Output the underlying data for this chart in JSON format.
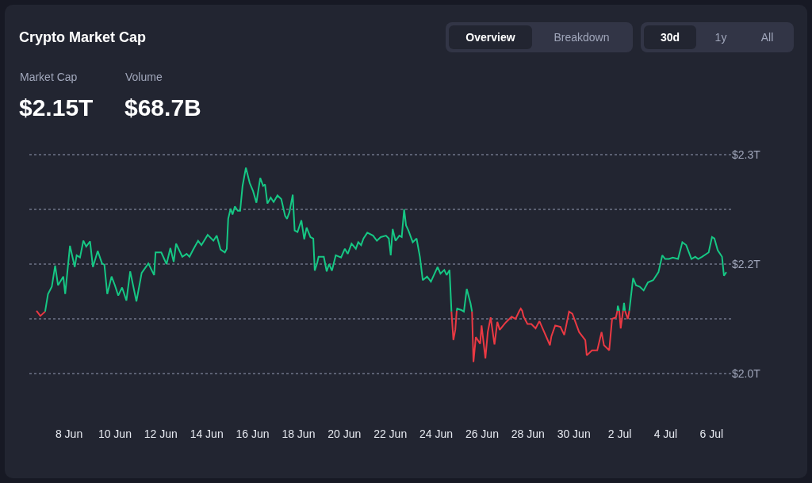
{
  "chart_data": {
    "type": "line",
    "title": "Crypto Market Cap",
    "annotations": [
      "Market Cap",
      "$2.15T",
      "Volume",
      "$68.7B",
      "Overview",
      "Breakdown",
      "30d",
      "1y",
      "All"
    ],
    "xlim": [
      "--06-06T06:30",
      "--07-06T20:30"
    ],
    "xticks": [
      {
        "value": "--06-08",
        "label": "8 Jun"
      },
      {
        "value": "--06-10",
        "label": "10 Jun"
      },
      {
        "value": "--06-12",
        "label": "12 Jun"
      },
      {
        "value": "--06-14",
        "label": "14 Jun"
      },
      {
        "value": "--06-16",
        "label": "16 Jun"
      },
      {
        "value": "--06-18",
        "label": "18 Jun"
      },
      {
        "value": "--06-20",
        "label": "20 Jun"
      },
      {
        "value": "--06-22",
        "label": "22 Jun"
      },
      {
        "value": "--06-24",
        "label": "24 Jun"
      },
      {
        "value": "--06-26",
        "label": "26 Jun"
      },
      {
        "value": "--06-28",
        "label": "28 Jun"
      },
      {
        "value": "--06-30",
        "label": "30 Jun"
      },
      {
        "value": "--07-02",
        "label": "2 Jul"
      },
      {
        "value": "--07-04",
        "label": "4 Jul"
      },
      {
        "value": "--07-06",
        "label": "6 Jul"
      }
    ],
    "ylim": [
      1.998,
      2.302
    ],
    "yticks": [
      {
        "value": 2.0,
        "label": "$2.0T"
      },
      {
        "value": 2.075,
        "label": null
      },
      {
        "value": 2.15,
        "label": "$2.2T"
      },
      {
        "value": 2.225,
        "label": null
      },
      {
        "value": 2.3,
        "label": "$2.3T"
      }
    ],
    "grid": "y",
    "series": [
      {
        "color": "#16c784",
        "x": [
          "--06-06T23:00",
          "--06-07T02:00",
          "--06-07T06:00",
          "--06-07T09:30",
          "--06-07T12:30",
          "--06-07T18:00",
          "--06-07T20:00",
          "--06-08T01:00",
          "--06-08T06:00",
          "--06-08T08:00",
          "--06-08T11:30",
          "--06-08T15:00",
          "--06-08T18:00",
          "--06-08T22:00",
          "--06-09T01:00",
          "--06-09T06:00",
          "--06-09T10:30",
          "--06-09T13:00",
          "--06-09T16:00",
          "--06-09T20:30",
          "--06-10T00:00",
          "--06-10T03:30",
          "--06-10T07:30",
          "--06-10T12:00",
          "--06-10T16:00",
          "--06-10T22:30",
          "--06-11T04:00",
          "--06-11T11:00",
          "--06-11T17:00",
          "--06-11T18:30",
          "--06-12T00:30",
          "--06-12T06:00",
          "--06-12T10:00",
          "--06-12T13:30",
          "--06-12T16:00",
          "--06-12T22:30",
          "--06-13T03:00",
          "--06-13T06:00",
          "--06-13T09:30",
          "--06-13T15:00",
          "--06-13T18:30",
          "--06-14T01:00",
          "--06-14T07:00",
          "--06-14T10:30",
          "--06-14T14:30",
          "--06-14T19:00",
          "--06-14T21:00",
          "--06-14T22:30",
          "--06-15T01:00",
          "--06-15T03:00",
          "--06-15T05:30",
          "--06-15T08:30",
          "--06-15T11:00",
          "--06-15T13:30",
          "--06-15T17:00",
          "--06-15T21:00",
          "--06-16T00:30",
          "--06-16T04:00",
          "--06-16T08:00",
          "--06-16T11:00",
          "--06-16T13:00",
          "--06-16T15:30",
          "--06-16T19:00",
          "--06-16T22:00",
          "--06-17T02:00",
          "--06-17T06:00",
          "--06-17T10:00",
          "--06-17T12:00",
          "--06-17T14:30",
          "--06-17T18:00",
          "--06-17T20:00",
          "--06-17T23:00",
          "--06-18T03:00",
          "--06-18T06:00",
          "--06-18T08:30",
          "--06-18T12:30",
          "--06-18T15:30",
          "--06-18T17:00",
          "--06-18T19:30",
          "--06-18T21:00",
          "--06-19T02:30",
          "--06-19T05:30",
          "--06-19T08:00",
          "--06-19T11:00",
          "--06-19T15:00",
          "--06-19T20:30",
          "--06-20T00:30",
          "--06-20T03:30",
          "--06-20T07:30",
          "--06-20T12:00",
          "--06-20T14:30",
          "--06-20T17:30",
          "--06-20T20:00",
          "--06-21T00:00",
          "--06-21T06:00",
          "--06-21T10:00",
          "--06-21T14:00",
          "--06-21T19:30",
          "--06-21T22:30",
          "--06-22T00:30",
          "--06-22T02:30",
          "--06-22T05:30",
          "--06-22T09:30",
          "--06-22T12:00",
          "--06-22T14:30",
          "--06-22T16:30",
          "--06-22T19:00",
          "--06-22T23:30",
          "--06-23T03:30",
          "--06-23T07:00",
          "--06-23T10:00",
          "--06-23T14:30",
          "--06-23T18:30",
          "--06-24T01:30",
          "--06-24T04:30",
          "--06-24T08:30",
          "--06-24T11:00",
          "--06-24T14:00",
          "--06-24T15:30",
          "--06-24T16:00",
          "--06-24T18:00",
          "--06-24T21:30",
          "--06-24T22:00",
          "--06-25T02:30",
          "--06-25T05:00",
          "--06-25T08:00",
          "--06-25T12:00",
          "--06-25T13:30",
          "--06-29T10:00",
          "--07-01T21:30",
          "--07-01T22:00",
          "--07-01T23:30",
          "--07-02T01:00",
          "--07-02T03:30",
          "--07-02T04:30",
          "--07-02T05:30",
          "--07-02T08:30",
          "--07-02T10:00",
          "--07-02T11:30",
          "--07-02T14:00",
          "--07-02T17:00",
          "--07-02T21:00",
          "--07-03T01:00",
          "--07-03T05:30",
          "--07-03T11:00",
          "--07-03T16:30",
          "--07-03T20:30",
          "--07-03T23:30",
          "--07-04T03:30",
          "--07-04T07:30",
          "--07-04T13:00",
          "--07-04T17:30",
          "--07-04T21:30",
          "--07-05T03:00",
          "--07-05T07:00",
          "--07-05T10:00",
          "--07-05T14:00",
          "--07-05T21:00",
          "--07-06T00:30",
          "--07-06T03:00",
          "--07-06T06:30",
          "--07-06T11:00",
          "--07-06T13:00",
          "--07-06T15:30"
        ],
        "values": [
          2.085,
          2.109,
          2.119,
          2.148,
          2.121,
          2.133,
          2.109,
          2.175,
          2.146,
          2.162,
          2.159,
          2.182,
          2.174,
          2.181,
          2.146,
          2.168,
          2.151,
          2.149,
          2.109,
          2.133,
          2.121,
          2.107,
          2.118,
          2.1,
          2.14,
          2.099,
          2.138,
          2.151,
          2.135,
          2.166,
          2.166,
          2.15,
          2.172,
          2.153,
          2.178,
          2.16,
          2.164,
          2.16,
          2.169,
          2.182,
          2.176,
          2.19,
          2.182,
          2.189,
          2.17,
          2.166,
          2.171,
          2.212,
          2.226,
          2.218,
          2.229,
          2.223,
          2.223,
          2.257,
          2.282,
          2.261,
          2.25,
          2.234,
          2.268,
          2.257,
          2.259,
          2.233,
          2.241,
          2.235,
          2.244,
          2.239,
          2.216,
          2.212,
          2.221,
          2.245,
          2.196,
          2.194,
          2.21,
          2.184,
          2.2,
          2.187,
          2.185,
          2.141,
          2.151,
          2.16,
          2.16,
          2.14,
          2.15,
          2.141,
          2.162,
          2.159,
          2.171,
          2.164,
          2.178,
          2.171,
          2.18,
          2.176,
          2.185,
          2.193,
          2.189,
          2.182,
          2.187,
          2.189,
          2.185,
          2.162,
          2.198,
          2.182,
          2.189,
          2.187,
          2.225,
          2.203,
          2.196,
          2.18,
          2.185,
          2.16,
          2.128,
          2.133,
          2.126,
          2.146,
          2.137,
          2.142,
          2.135,
          2.142,
          2.1,
          2.085,
          null,
          2.086,
          2.089,
          2.087,
          2.085,
          2.116,
          2.096,
          2.085,
          null,
          2.086,
          2.093,
          2.086,
          null,
          2.086,
          2.097,
          2.086,
          null,
          2.086,
          2.103,
          2.131,
          2.121,
          2.119,
          2.114,
          2.125,
          2.128,
          2.139,
          2.162,
          2.157,
          2.157,
          2.159,
          2.157,
          2.18,
          2.176,
          2.157,
          2.16,
          2.157,
          2.16,
          2.166,
          2.187,
          2.185,
          2.169,
          2.16,
          2.134,
          2.139
        ]
      },
      {
        "color": "#ea3943",
        "x": [
          "--06-06T14:00",
          "--06-06T18:00",
          "--06-06T23:00",
          "--06-15T00:00",
          "--06-24T16:00",
          "--06-24T18:00",
          "--06-24T20:00",
          "--06-24T21:30",
          "--06-25T05:00",
          "--06-25T13:30",
          "--06-25T15:00",
          "--06-25T17:30",
          "--06-25T22:00",
          "--06-25T23:30",
          "--06-26T03:30",
          "--06-26T06:00",
          "--06-26T09:00",
          "--06-26T13:00",
          "--06-26T16:00",
          "--06-26T18:30",
          "--06-27T00:00",
          "--06-27T01:30",
          "--06-27T07:00",
          "--06-27T11:00",
          "--06-27T15:00",
          "--06-27T16:30",
          "--06-27T18:00",
          "--06-27T19:30",
          "--06-27T23:30",
          "--06-28T03:30",
          "--06-28T08:00",
          "--06-28T12:00",
          "--06-28T16:00",
          "--06-28T23:00",
          "--06-29T00:30",
          "--06-29T04:30",
          "--06-29T10:00",
          "--06-29T14:00",
          "--06-29T19:00",
          "--06-29T22:30",
          "--06-30T05:30",
          "--06-30T12:00",
          "--06-30T13:30",
          "--06-30T19:00",
          "--07-01T00:30",
          "--07-01T05:00",
          "--07-01T07:30",
          "--07-01T13:00",
          "--07-01T16:00",
          "--07-01T20:00",
          "--07-01T21:30",
          "--07-01T22:00",
          "--07-01T23:30",
          "--07-02T01:00",
          "--07-02T03:30",
          "--07-02T04:30",
          "--07-02T05:30",
          "--07-02T08:30",
          "--07-02T10:00"
        ],
        "values": [
          2.086,
          2.079,
          2.085,
          null,
          2.085,
          2.046,
          2.06,
          2.086,
          null,
          2.085,
          2.016,
          2.05,
          2.041,
          2.066,
          2.021,
          2.057,
          2.077,
          2.04,
          2.071,
          2.06,
          2.069,
          2.071,
          2.078,
          2.075,
          2.086,
          2.089,
          2.086,
          2.078,
          2.068,
          2.068,
          2.062,
          2.072,
          2.06,
          2.039,
          2.051,
          2.066,
          2.064,
          2.053,
          2.085,
          2.082,
          2.057,
          2.046,
          2.025,
          2.032,
          2.032,
          2.057,
          2.039,
          2.032,
          2.075,
          2.077,
          2.086,
          null,
          2.086,
          2.062,
          2.086,
          null,
          2.086,
          2.075,
          2.086
        ]
      }
    ]
  }
}
